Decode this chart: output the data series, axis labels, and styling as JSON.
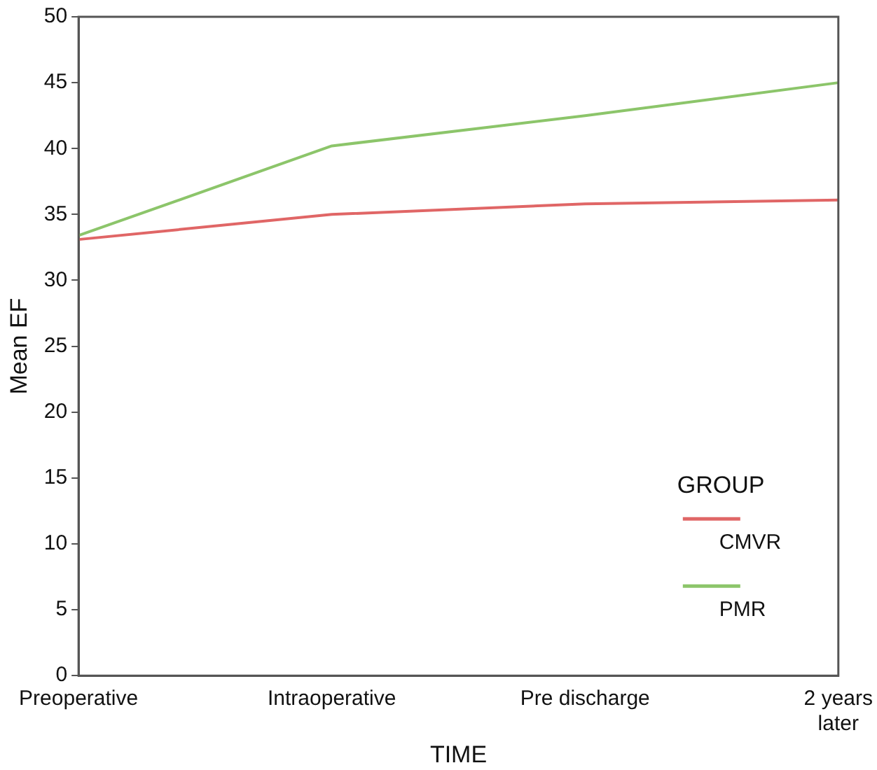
{
  "chart_data": {
    "type": "line",
    "xlabel": "TIME",
    "ylabel": "Mean EF",
    "legend_title": "GROUP",
    "legend": "bottom right",
    "grid": false,
    "marker": "none",
    "line_style": "solid",
    "categories": [
      "Preoperative",
      "Intraoperative",
      "Pre discharge",
      "2 years later"
    ],
    "ylim": [
      0,
      50
    ],
    "yticks": [
      0,
      5,
      10,
      15,
      20,
      25,
      30,
      35,
      40,
      45,
      50
    ],
    "series": [
      {
        "name": "CMVR",
        "color": "#e06666",
        "values": [
          33.1,
          35.0,
          35.8,
          36.1
        ]
      },
      {
        "name": "PMR",
        "color": "#8cc56a",
        "values": [
          33.4,
          40.2,
          42.5,
          45.0
        ]
      }
    ]
  }
}
